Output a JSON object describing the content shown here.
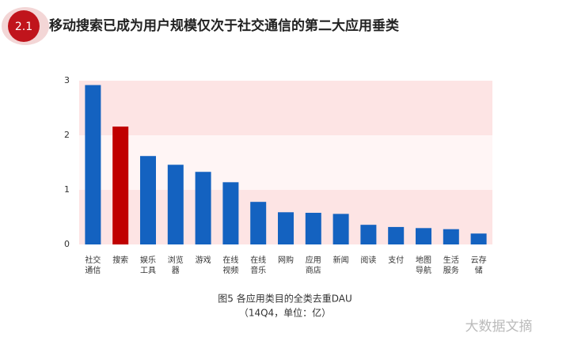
{
  "header": {
    "badge": "2.1",
    "title": "移动搜索已成为用户规模仅次于社交通信的第二大应用垂类"
  },
  "chart_data": {
    "type": "bar",
    "caption": "图5 各应用类目的全类去重DAU",
    "subcaption": "（14Q4，单位：亿）",
    "categories": [
      "社交通信",
      "搜索",
      "娱乐工具",
      "浏览器",
      "游戏",
      "在线视频",
      "在线音乐",
      "网购",
      "应用商店",
      "新闻",
      "阅读",
      "支付",
      "地图导航",
      "生活服务",
      "云存储"
    ],
    "values": [
      2.92,
      2.16,
      1.62,
      1.46,
      1.33,
      1.14,
      0.78,
      0.59,
      0.58,
      0.56,
      0.36,
      0.32,
      0.3,
      0.28,
      0.2
    ],
    "colors": [
      "#1462c0",
      "#c00000",
      "#1462c0",
      "#1462c0",
      "#1462c0",
      "#1462c0",
      "#1462c0",
      "#1462c0",
      "#1462c0",
      "#1462c0",
      "#1462c0",
      "#1462c0",
      "#1462c0",
      "#1462c0",
      "#1462c0"
    ],
    "ylim": [
      0,
      3
    ],
    "yticks": [
      0,
      1,
      2,
      3
    ],
    "band_colors": [
      "#fde4e4",
      "#fff5f5"
    ]
  },
  "watermark": "大数据文摘"
}
